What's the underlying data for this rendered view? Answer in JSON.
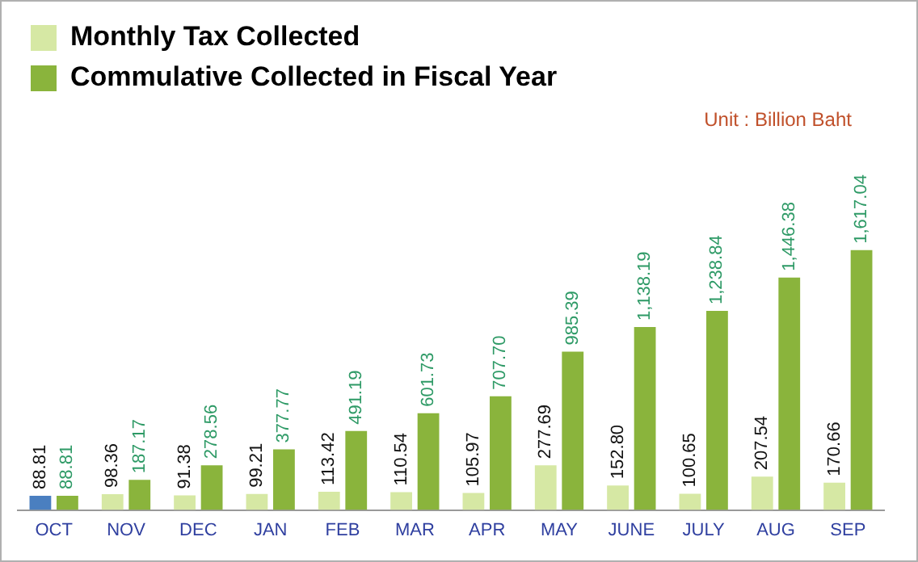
{
  "chart_data": {
    "type": "bar",
    "categories": [
      "OCT",
      "NOV",
      "DEC",
      "JAN",
      "FEB",
      "MAR",
      "APR",
      "MAY",
      "JUNE",
      "JULY",
      "AUG",
      "SEP"
    ],
    "series": [
      {
        "name": "Monthly Tax Collected",
        "color": "#d6e8a4",
        "colors": [
          "#4a7fc0",
          "#d6e8a4",
          "#d6e8a4",
          "#d6e8a4",
          "#d6e8a4",
          "#d6e8a4",
          "#d6e8a4",
          "#d6e8a4",
          "#d6e8a4",
          "#d6e8a4",
          "#d6e8a4",
          "#d6e8a4"
        ],
        "values": [
          88.81,
          98.36,
          91.38,
          99.21,
          113.42,
          110.54,
          105.97,
          277.69,
          152.8,
          100.65,
          207.54,
          170.66
        ],
        "value_labels": [
          "88.81",
          "98.36",
          "91.38",
          "99.21",
          "113.42",
          "110.54",
          "105.97",
          "277.69",
          "152.80",
          "100.65",
          "207.54",
          "170.66"
        ]
      },
      {
        "name": "Commulative Collected in Fiscal Year",
        "color": "#8ab43c",
        "values": [
          88.81,
          187.17,
          278.56,
          377.77,
          491.19,
          601.73,
          707.7,
          985.39,
          1138.19,
          1238.84,
          1446.38,
          1617.04
        ],
        "value_labels": [
          "88.81",
          "187.17",
          "278.56",
          "377.77",
          "491.19",
          "601.73",
          "707.70",
          "985.39",
          "1,138.19",
          "1,238.84",
          "1,446.38",
          "1,617.04"
        ]
      }
    ],
    "annotations": [
      "Unit : Billion Baht"
    ],
    "legend": "top",
    "grid": false
  }
}
